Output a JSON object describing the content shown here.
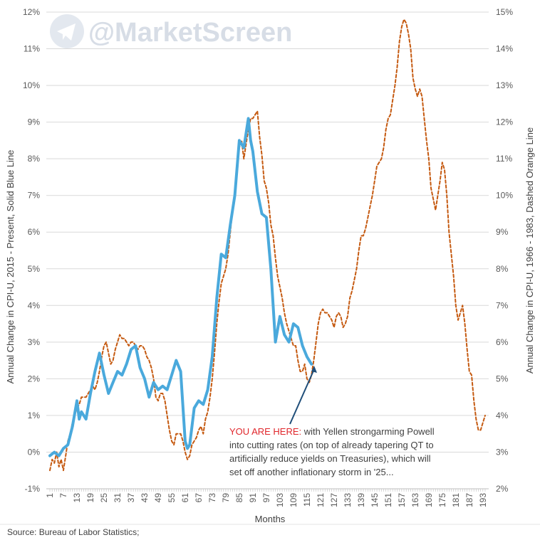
{
  "watermark": {
    "text": "@MarketScreen"
  },
  "source": "Source: Bureau of Labor Statistics;",
  "annotation": {
    "highlight": "YOU ARE HERE:",
    "line1": " with Yellen strongarming Powell",
    "line2": "into cutting rates (on top of already tapering QT to",
    "line3": "artificially reduce yields on Treasuries), which will",
    "line4": "set off another inflationary storm in '25..."
  },
  "colors": {
    "blue": "#4aa9dc",
    "orange": "#c55a11",
    "grid": "#d9d9d9",
    "arrow": "#1f4e79"
  },
  "chart_data": {
    "type": "line",
    "xlabel": "Months",
    "ylabel_left": "Annual Change in CPI-U, 2015 - Present, Solid Blue Line",
    "ylabel_right": "Annual Change in CPI-U, 1966 - 1983, Dashed Orange Line",
    "ylim_left": [
      -1,
      12
    ],
    "ylim_right": [
      2,
      15
    ],
    "xlim": [
      1,
      194
    ],
    "grid": "horizontal",
    "x_ticks": [
      "1",
      "7",
      "13",
      "19",
      "25",
      "31",
      "37",
      "43",
      "49",
      "55",
      "61",
      "67",
      "73",
      "79",
      "85",
      "91",
      "97",
      "103",
      "109",
      "115",
      "121",
      "127",
      "133",
      "139",
      "145",
      "151",
      "157",
      "163",
      "169",
      "175",
      "181",
      "187",
      "193"
    ],
    "y_ticks_left": [
      "-1%",
      "0%",
      "1%",
      "2%",
      "3%",
      "4%",
      "5%",
      "6%",
      "7%",
      "8%",
      "9%",
      "10%",
      "11%",
      "12%"
    ],
    "y_ticks_right": [
      "2%",
      "3%",
      "4%",
      "5%",
      "6%",
      "7%",
      "8%",
      "9%",
      "10%",
      "11%",
      "12%",
      "13%",
      "14%",
      "15%"
    ],
    "series": [
      {
        "name": "CPI-U 2015 - Present",
        "axis": "left",
        "style": "solid",
        "x": [
          1,
          3,
          5,
          7,
          9,
          11,
          13,
          14,
          15,
          17,
          19,
          21,
          23,
          25,
          27,
          29,
          31,
          33,
          35,
          37,
          39,
          41,
          43,
          45,
          47,
          49,
          51,
          53,
          55,
          57,
          59,
          61,
          62,
          63,
          65,
          67,
          69,
          71,
          73,
          75,
          77,
          79,
          81,
          83,
          85,
          87,
          89,
          90,
          91,
          93,
          95,
          97,
          99,
          101,
          103,
          105,
          107,
          109,
          111,
          113,
          115,
          117
        ],
        "values": [
          -0.1,
          0.0,
          -0.1,
          0.1,
          0.2,
          0.7,
          1.4,
          0.9,
          1.1,
          0.9,
          1.6,
          2.2,
          2.7,
          2.1,
          1.6,
          1.9,
          2.2,
          2.1,
          2.4,
          2.8,
          2.9,
          2.3,
          2.0,
          1.5,
          1.9,
          1.7,
          1.8,
          1.7,
          2.1,
          2.5,
          2.2,
          0.3,
          0.1,
          0.2,
          1.2,
          1.4,
          1.3,
          1.7,
          2.6,
          4.2,
          5.4,
          5.3,
          6.2,
          7.0,
          8.5,
          8.3,
          9.1,
          8.5,
          8.2,
          7.1,
          6.5,
          6.4,
          5.0,
          3.0,
          3.7,
          3.2,
          3.0,
          3.5,
          3.4,
          2.9,
          2.6,
          2.4
        ]
      },
      {
        "name": "CPI-U 1966 - 1983",
        "axis": "right",
        "style": "dashed",
        "x": [
          1,
          2,
          3,
          4,
          5,
          6,
          7,
          8,
          9,
          10,
          11,
          12,
          13,
          14,
          15,
          16,
          17,
          18,
          19,
          20,
          21,
          22,
          23,
          24,
          25,
          26,
          27,
          28,
          29,
          30,
          31,
          32,
          33,
          34,
          35,
          36,
          37,
          38,
          39,
          40,
          41,
          42,
          43,
          44,
          45,
          46,
          47,
          48,
          49,
          50,
          51,
          52,
          53,
          54,
          55,
          56,
          57,
          58,
          59,
          60,
          61,
          62,
          63,
          64,
          65,
          66,
          67,
          68,
          69,
          70,
          71,
          72,
          73,
          74,
          75,
          76,
          77,
          78,
          79,
          80,
          81,
          82,
          83,
          84,
          85,
          86,
          87,
          88,
          89,
          90,
          91,
          92,
          93,
          94,
          95,
          96,
          97,
          98,
          99,
          100,
          101,
          102,
          103,
          104,
          105,
          106,
          107,
          108,
          109,
          110,
          111,
          112,
          113,
          114,
          115,
          116,
          117,
          118,
          119,
          120,
          121,
          122,
          123,
          124,
          125,
          126,
          127,
          128,
          129,
          130,
          131,
          132,
          133,
          134,
          135,
          136,
          137,
          138,
          139,
          140,
          141,
          142,
          143,
          144,
          145,
          146,
          147,
          148,
          149,
          150,
          151,
          152,
          153,
          154,
          155,
          156,
          157,
          158,
          159,
          160,
          161,
          162,
          163,
          164,
          165,
          166,
          167,
          168,
          169,
          170,
          171,
          172,
          173,
          174,
          175,
          176,
          177,
          178,
          179,
          180,
          181,
          182,
          183,
          184,
          185,
          186,
          187,
          188,
          189,
          190,
          191,
          192,
          193,
          194
        ],
        "values": [
          2.5,
          2.8,
          2.7,
          3.0,
          2.6,
          2.8,
          2.5,
          2.9,
          3.3,
          3.5,
          3.8,
          4.0,
          4.2,
          4.3,
          4.5,
          4.5,
          4.5,
          4.6,
          4.7,
          4.8,
          4.7,
          4.9,
          5.2,
          5.6,
          5.9,
          6.0,
          5.7,
          5.4,
          5.5,
          5.8,
          6.0,
          6.2,
          6.1,
          6.1,
          6.0,
          5.9,
          6.0,
          6.0,
          5.9,
          5.8,
          5.9,
          5.9,
          5.8,
          5.6,
          5.5,
          5.3,
          5.0,
          4.5,
          4.4,
          4.6,
          4.6,
          4.4,
          4.0,
          3.6,
          3.3,
          3.2,
          3.5,
          3.5,
          3.5,
          3.3,
          3.0,
          2.8,
          2.9,
          3.2,
          3.3,
          3.4,
          3.6,
          3.7,
          3.5,
          3.9,
          4.1,
          4.5,
          5.0,
          5.7,
          6.5,
          7.1,
          7.6,
          7.8,
          8.0,
          8.4,
          9.0,
          9.6,
          10.1,
          10.8,
          11.3,
          11.5,
          11.0,
          11.4,
          11.8,
          12.1,
          12.1,
          12.2,
          12.3,
          11.6,
          11.1,
          10.4,
          10.2,
          9.8,
          9.2,
          8.9,
          8.3,
          7.8,
          7.5,
          7.2,
          6.8,
          6.5,
          6.3,
          6.1,
          5.9,
          5.9,
          5.5,
          5.2,
          5.2,
          5.4,
          5.0,
          4.9,
          5.1,
          5.5,
          6.0,
          6.5,
          6.8,
          6.9,
          6.8,
          6.8,
          6.7,
          6.6,
          6.4,
          6.7,
          6.8,
          6.7,
          6.4,
          6.5,
          6.7,
          7.2,
          7.4,
          7.7,
          8.0,
          8.5,
          8.9,
          8.9,
          9.1,
          9.4,
          9.7,
          10.0,
          10.4,
          10.8,
          10.9,
          11.0,
          11.3,
          11.8,
          12.1,
          12.2,
          12.6,
          13.0,
          13.5,
          14.2,
          14.6,
          14.8,
          14.7,
          14.4,
          14.0,
          13.2,
          12.9,
          12.7,
          12.9,
          12.7,
          12.1,
          11.5,
          11.0,
          10.2,
          9.9,
          9.6,
          10.0,
          10.4,
          10.9,
          10.7,
          10.0,
          9.0,
          8.4,
          7.8,
          7.0,
          6.6,
          6.8,
          7.0,
          6.5,
          5.8,
          5.2,
          5.1,
          4.4,
          3.9,
          3.6,
          3.6,
          3.8,
          4.0
        ]
      }
    ]
  }
}
